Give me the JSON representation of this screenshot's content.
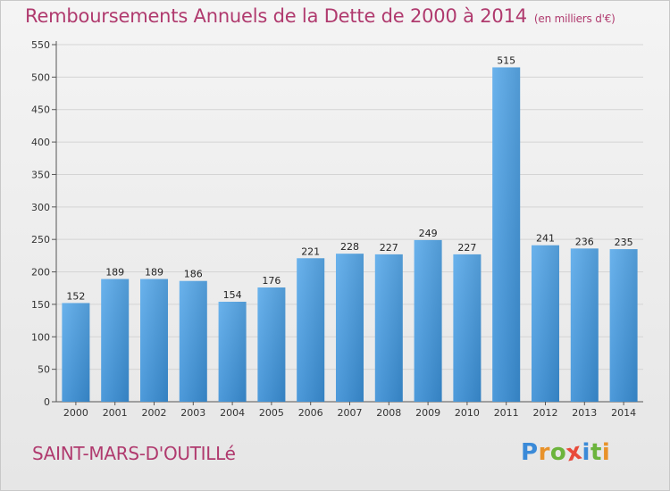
{
  "chart_data": {
    "type": "bar",
    "title": "Remboursements Annuels de la Dette de 2000 à 2014",
    "unit_label": "(en milliers d'€)",
    "categories": [
      "2000",
      "2001",
      "2002",
      "2003",
      "2004",
      "2005",
      "2006",
      "2007",
      "2008",
      "2009",
      "2010",
      "2011",
      "2012",
      "2013",
      "2014"
    ],
    "values": [
      152,
      189,
      189,
      186,
      154,
      176,
      221,
      228,
      227,
      249,
      227,
      515,
      241,
      236,
      235
    ],
    "xlabel": "",
    "ylabel": "",
    "ylim": [
      0,
      550
    ],
    "yticks": [
      0,
      50,
      100,
      150,
      200,
      250,
      300,
      350,
      400,
      450,
      500,
      550
    ],
    "grid": true,
    "bar_color": "#3a8fd6"
  },
  "commune": "SAINT-MARS-D'OUTILLé",
  "logo": {
    "letters": [
      "P",
      "r",
      "o",
      "x",
      "i",
      "t",
      "i"
    ],
    "colors": [
      "#3a8ad8",
      "#e8922a",
      "#6cb43c",
      "#e84a3a",
      "#3a8ad8",
      "#6cb43c",
      "#e8922a"
    ]
  }
}
